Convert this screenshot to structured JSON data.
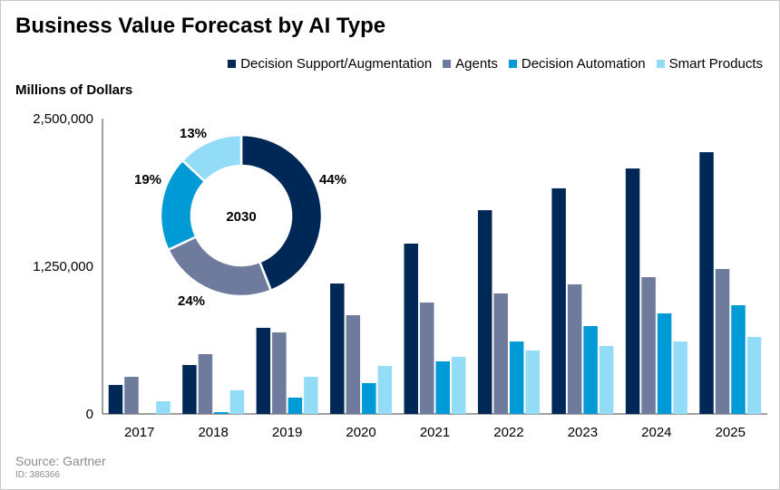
{
  "title": "Business Value Forecast by AI Type",
  "source": "Source: Gartner",
  "id_label": "ID: 386366",
  "chart_data": [
    {
      "type": "bar",
      "ylabel": "Millions of Dollars",
      "ylim": [
        0,
        2500000
      ],
      "yticks": [
        "0",
        "1,250,000",
        "2,500,000"
      ],
      "ytick_values": [
        0,
        1250000,
        2500000
      ],
      "grid": false,
      "legend": "top-right",
      "categories": [
        "2017",
        "2018",
        "2019",
        "2020",
        "2021",
        "2022",
        "2023",
        "2024",
        "2025"
      ],
      "series": [
        {
          "name": "Decision Support/Augmentation",
          "color": "#002856",
          "values": [
            245000,
            414000,
            729000,
            1104000,
            1442000,
            1725000,
            1910000,
            2078000,
            2216000
          ]
        },
        {
          "name": "Agents",
          "color": "#6e7b9d",
          "values": [
            314000,
            506000,
            690000,
            836000,
            943000,
            1020000,
            1097000,
            1158000,
            1227000
          ]
        },
        {
          "name": "Decision Automation",
          "color": "#009ad7",
          "values": [
            0,
            15000,
            138000,
            261000,
            445000,
            613000,
            744000,
            851000,
            920000
          ]
        },
        {
          "name": "Smart Products",
          "color": "#92dcf8",
          "values": [
            107000,
            200000,
            314000,
            406000,
            483000,
            537000,
            575000,
            613000,
            652000
          ]
        }
      ]
    },
    {
      "type": "pie",
      "center_label": "2030",
      "categories": [
        "Decision Support/Augmentation",
        "Agents",
        "Decision Automation",
        "Smart Products"
      ],
      "values": [
        44,
        24,
        19,
        13
      ],
      "labels": [
        "44%",
        "24%",
        "19%",
        "13%"
      ],
      "colors": [
        "#002856",
        "#6e7b9d",
        "#009ad7",
        "#92dcf8"
      ]
    }
  ]
}
